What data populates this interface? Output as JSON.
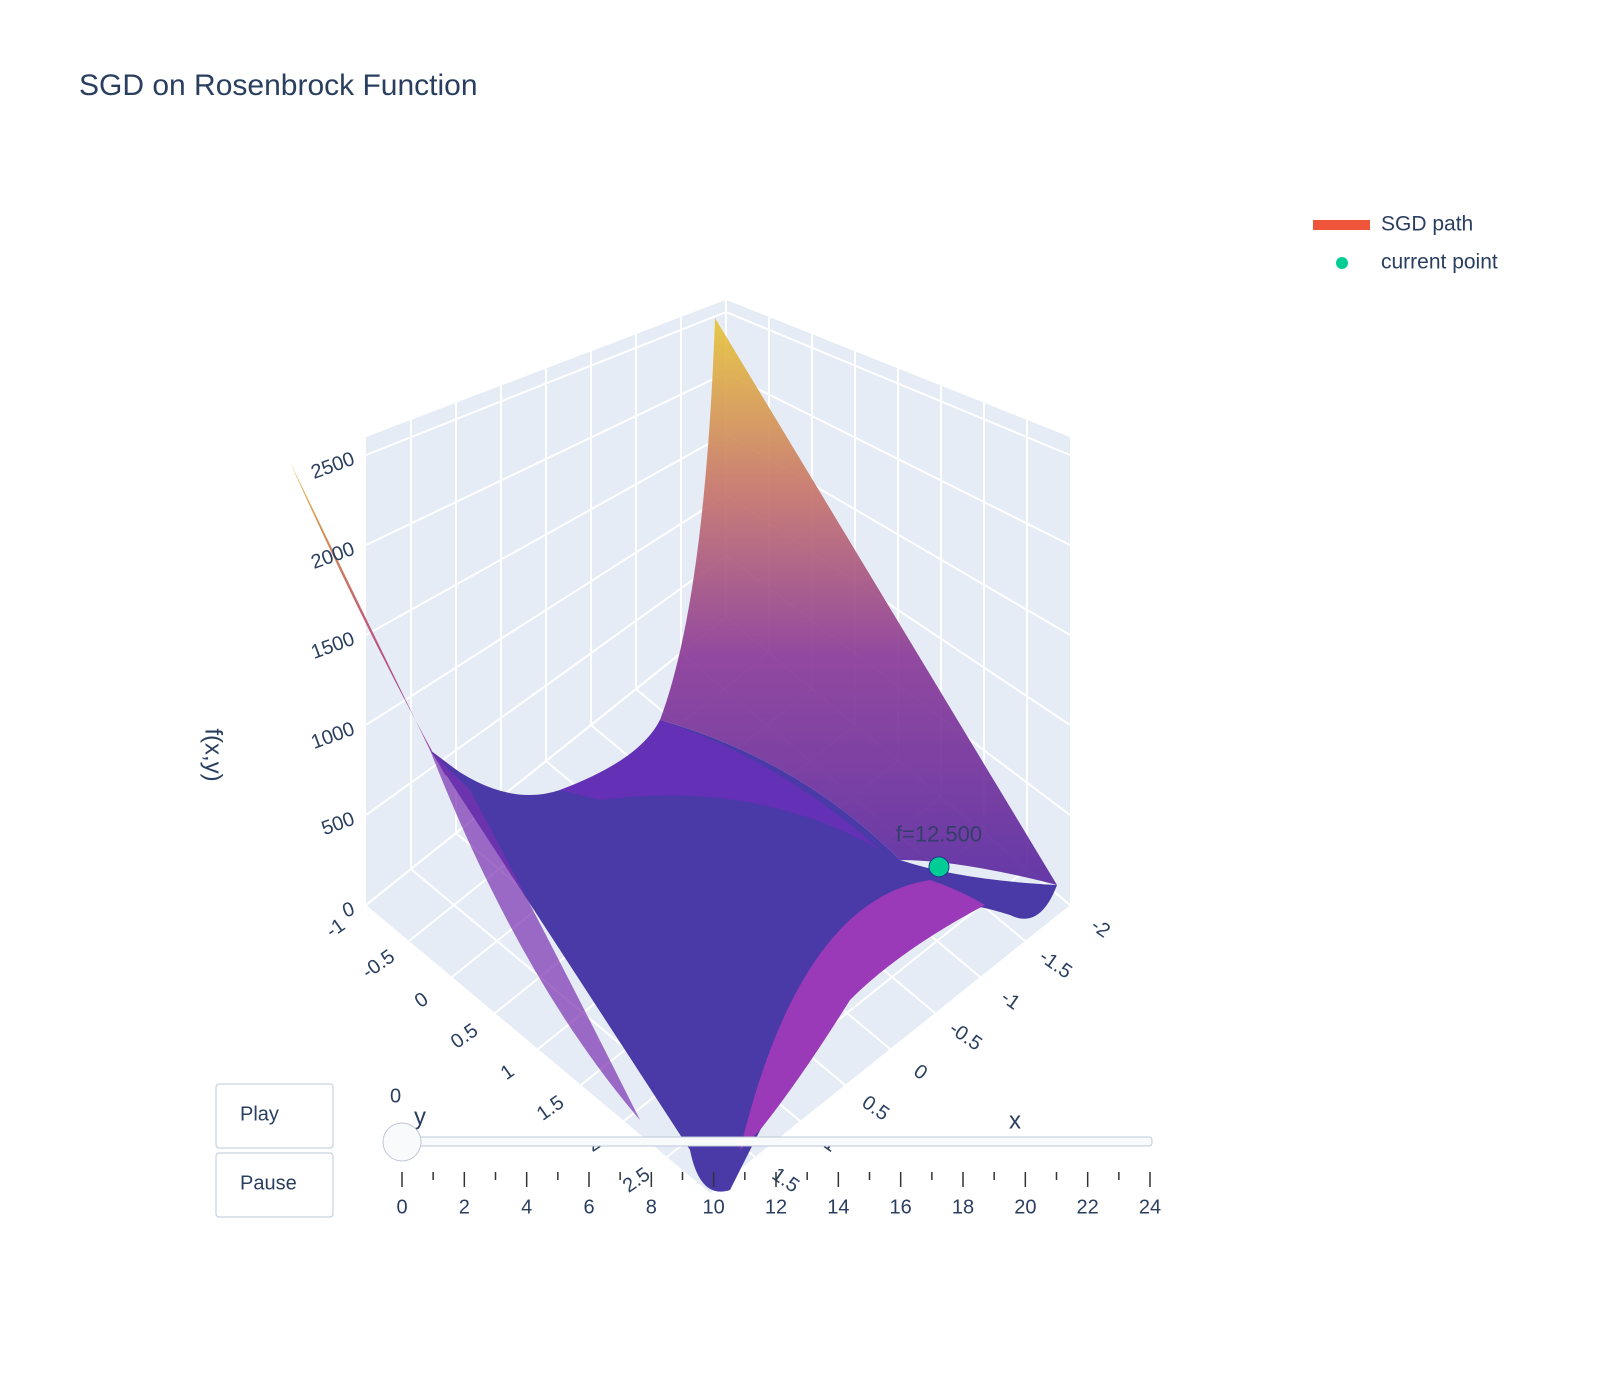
{
  "chart_data": {
    "type": "surface3d",
    "title": "SGD on Rosenbrock Function",
    "x_label": "x",
    "y_label": "y",
    "z_label": "f(x,y)",
    "xlim": [
      -2,
      2
    ],
    "ylim": [
      -1,
      3
    ],
    "zlim": [
      0,
      2600
    ],
    "xticks": [
      -2,
      -1.5,
      -1,
      -0.5,
      0,
      0.5,
      1,
      1.5
    ],
    "yticks": [
      -1,
      -0.5,
      0,
      0.5,
      1,
      1.5,
      2,
      2.5
    ],
    "zticks": [
      0,
      500,
      1000,
      1500,
      2000,
      2500
    ],
    "series": [
      {
        "name": "SGD path",
        "color": "#ef553b",
        "x": [
          -1.5
        ],
        "y": [
          2
        ],
        "z": [
          12.5
        ]
      },
      {
        "name": "current point",
        "color": "#00cc96",
        "x": [
          -1.5
        ],
        "y": [
          2
        ],
        "z": [
          12.5
        ],
        "text": "f=12.500"
      }
    ]
  },
  "slider": {
    "xlim": [
      0,
      24
    ],
    "ticks": [
      0,
      2,
      4,
      6,
      8,
      10,
      12,
      14,
      16,
      18,
      20,
      22,
      24
    ],
    "current_value": 0
  },
  "buttons": [
    "Play",
    "Pause"
  ]
}
